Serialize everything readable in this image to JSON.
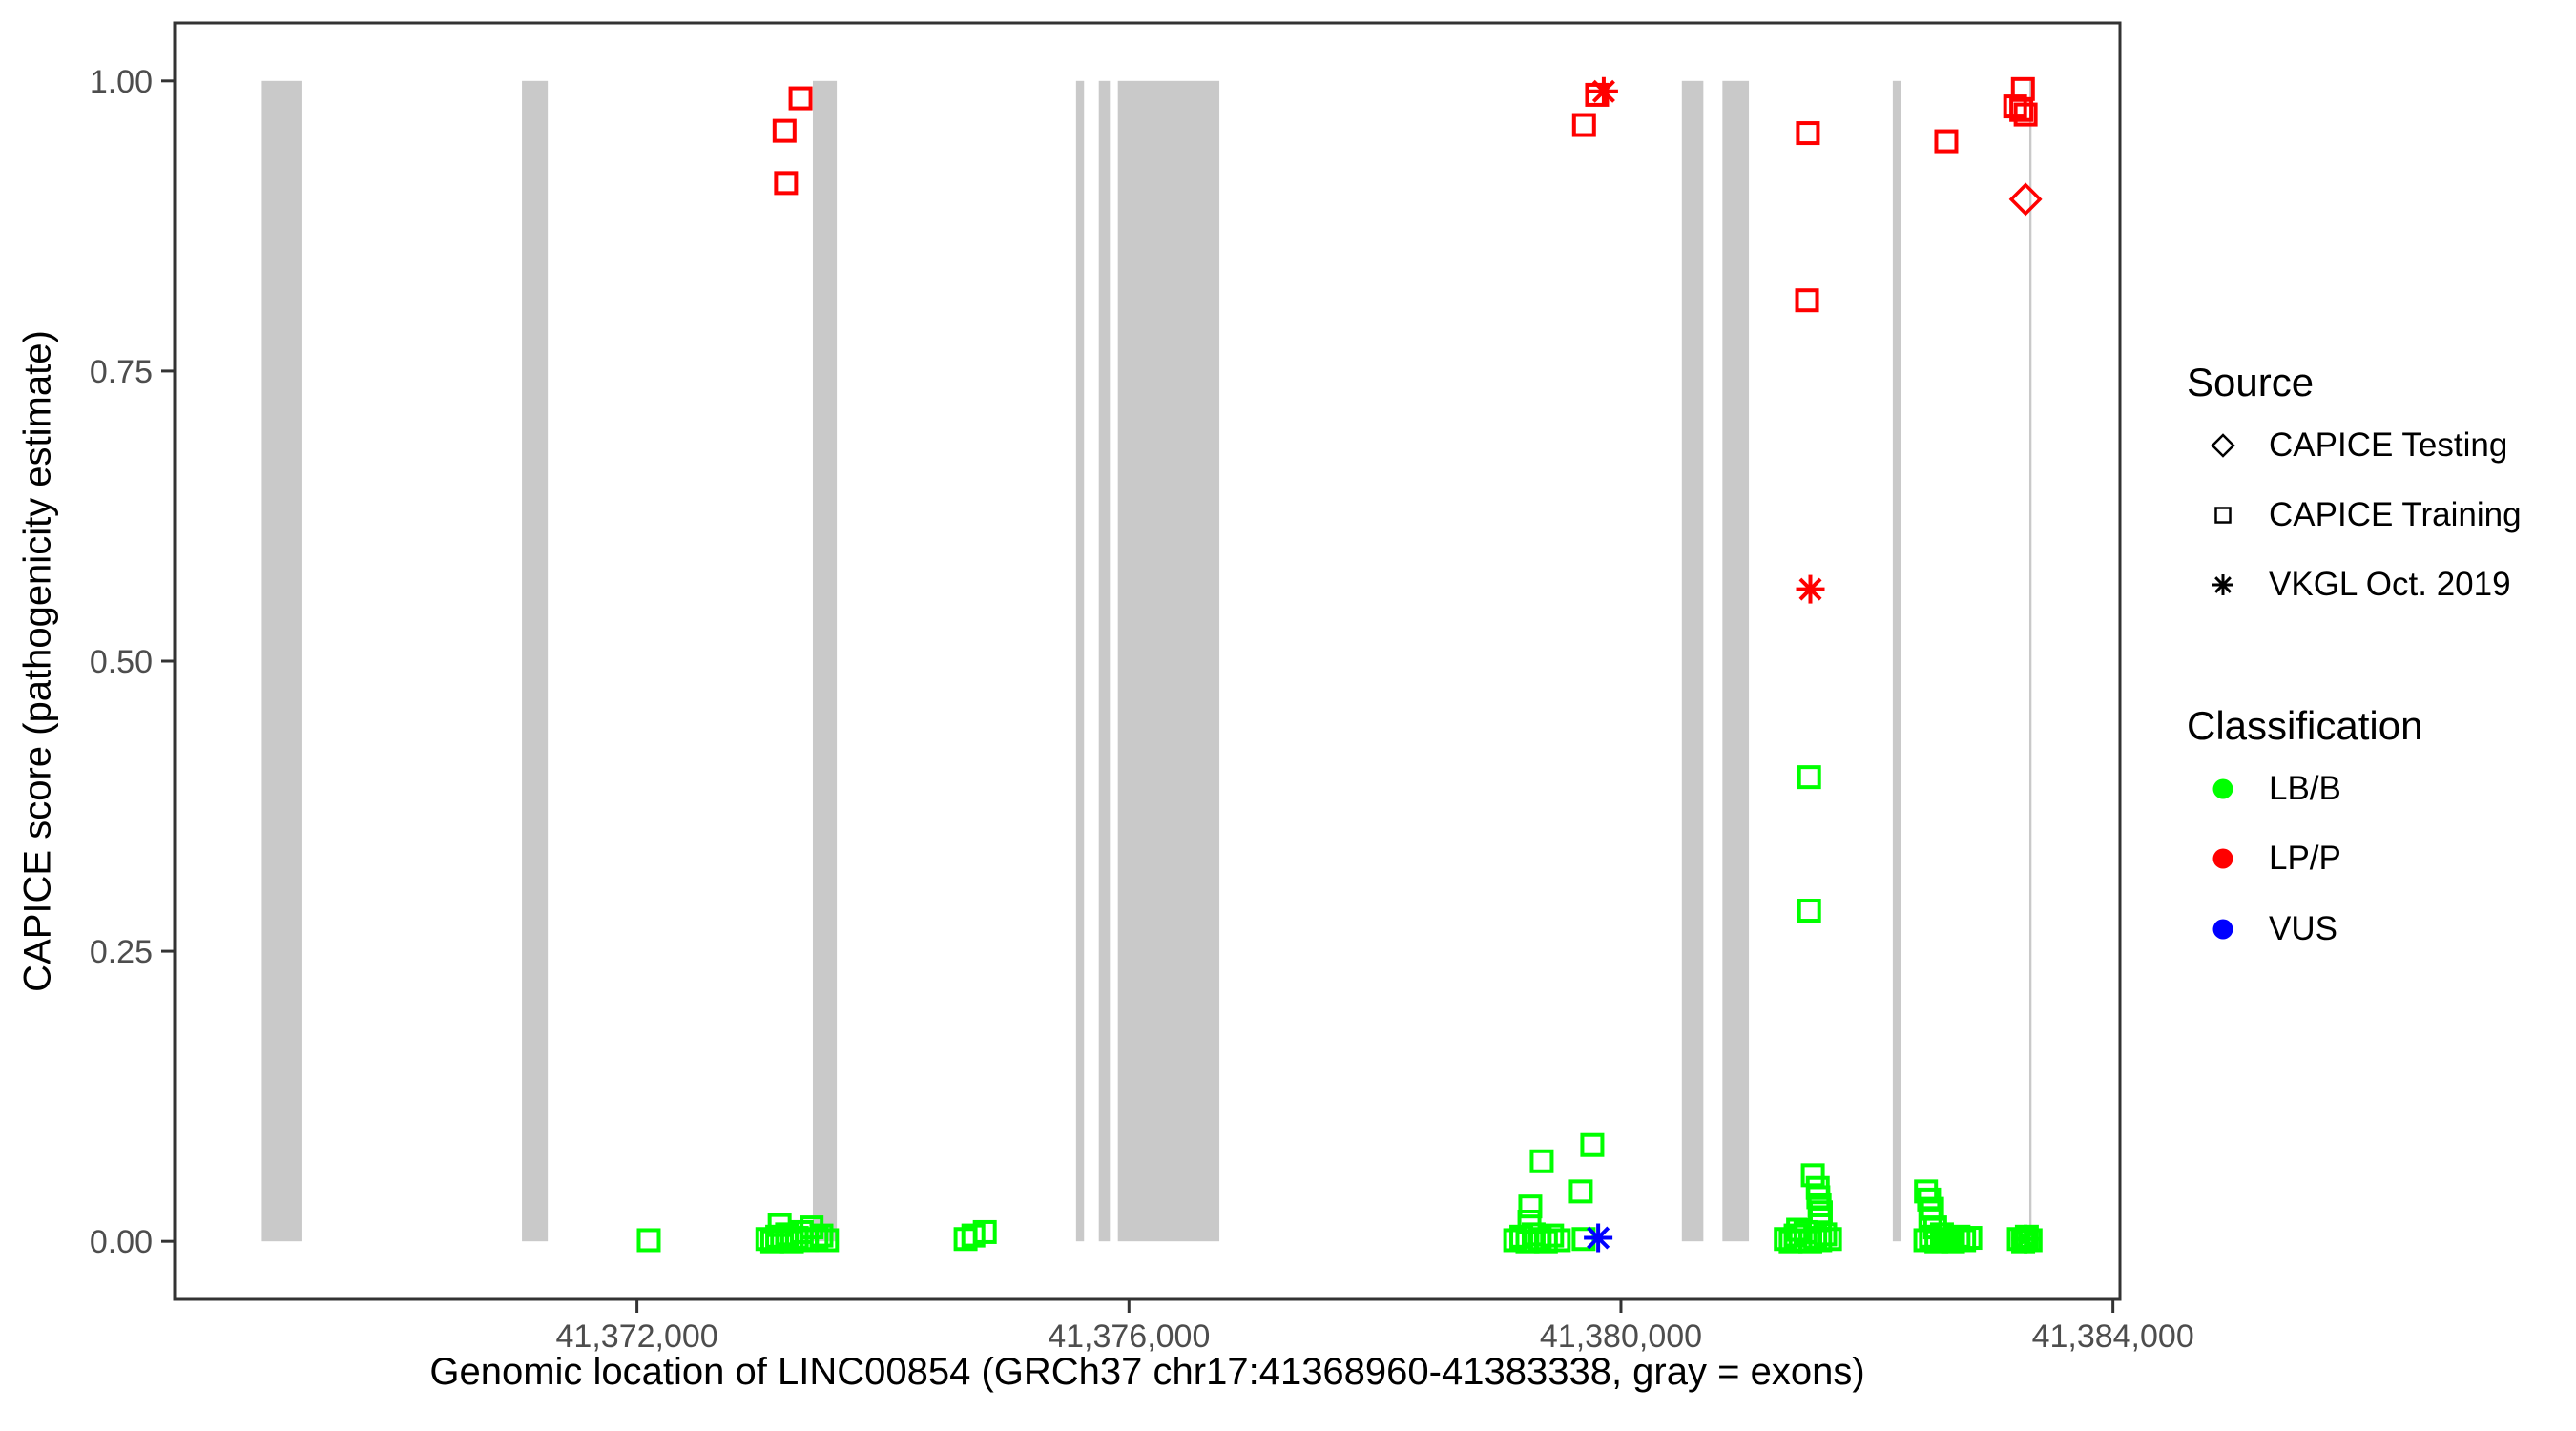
{
  "colors": {
    "classification": {
      "LB/B": "#00FF00",
      "LP/P": "#FF0000",
      "VUS": "#0000FF"
    },
    "exon_fill": "#C9C9C9",
    "panel_border": "#333333",
    "tick_label": "#4D4D4D"
  },
  "legend": {
    "source": {
      "title": "Source",
      "items": [
        {
          "label": "CAPICE Testing",
          "marker": "diamond"
        },
        {
          "label": "CAPICE Training",
          "marker": "square"
        },
        {
          "label": "VKGL Oct. 2019",
          "marker": "asterisk"
        }
      ]
    },
    "classification": {
      "title": "Classification",
      "items": [
        {
          "label": "LB/B",
          "color": "#00FF00"
        },
        {
          "label": "LP/P",
          "color": "#FF0000"
        },
        {
          "label": "VUS",
          "color": "#0000FF"
        }
      ]
    }
  },
  "chart_data": {
    "type": "scatter",
    "title": "",
    "xlabel": "Genomic location of LINC00854 (GRCh37 chr17:41368960-41383338, gray = exons)",
    "ylabel": "CAPICE score (pathogenicity estimate)",
    "xlim": [
      41368241,
      41384057
    ],
    "ylim": [
      -0.05,
      1.05
    ],
    "grid": false,
    "legend_position": "right",
    "x_ticks": [
      {
        "value": 41372000,
        "label": "41,372,000"
      },
      {
        "value": 41376000,
        "label": "41,376,000"
      },
      {
        "value": 41380000,
        "label": "41,380,000"
      },
      {
        "value": 41384000,
        "label": "41,384,000"
      }
    ],
    "y_ticks": [
      {
        "value": 0.0,
        "label": "0.00"
      },
      {
        "value": 0.25,
        "label": "0.25"
      },
      {
        "value": 0.5,
        "label": "0.50"
      },
      {
        "value": 0.75,
        "label": "0.75"
      },
      {
        "value": 1.0,
        "label": "1.00"
      }
    ],
    "exons_note": "gray bars span y=0 to y=1",
    "exons": [
      [
        41368950,
        41369280
      ],
      [
        41371065,
        41371275
      ],
      [
        41373430,
        41373625
      ],
      [
        41375570,
        41375635
      ],
      [
        41375755,
        41375845
      ],
      [
        41375910,
        41376735
      ],
      [
        41380495,
        41380670
      ],
      [
        41380825,
        41381040
      ],
      [
        41382210,
        41382280
      ],
      [
        41383320,
        41383338
      ]
    ],
    "points_format": [
      "genomic_position",
      "capice_score",
      "classification",
      "source_marker"
    ],
    "points": [
      [
        41372096,
        0.001,
        "LB/B",
        "square"
      ],
      [
        41373060,
        0.002,
        "LB/B",
        "square"
      ],
      [
        41373100,
        0.0,
        "LB/B",
        "square"
      ],
      [
        41373140,
        0.004,
        "LB/B",
        "square"
      ],
      [
        41373160,
        0.014,
        "LB/B",
        "square"
      ],
      [
        41373180,
        0.001,
        "LB/B",
        "square"
      ],
      [
        41373220,
        0.006,
        "LB/B",
        "square"
      ],
      [
        41373260,
        0.0,
        "LB/B",
        "square"
      ],
      [
        41373300,
        0.003,
        "LB/B",
        "square"
      ],
      [
        41373340,
        0.008,
        "LB/B",
        "square"
      ],
      [
        41373380,
        0.001,
        "LB/B",
        "square"
      ],
      [
        41373420,
        0.012,
        "LB/B",
        "square"
      ],
      [
        41373460,
        0.002,
        "LB/B",
        "square"
      ],
      [
        41373500,
        0.005,
        "LB/B",
        "square"
      ],
      [
        41373545,
        0.001,
        "LB/B",
        "square"
      ],
      [
        41374672,
        0.002,
        "LB/B",
        "square"
      ],
      [
        41374735,
        0.005,
        "LB/B",
        "square"
      ],
      [
        41374828,
        0.008,
        "LB/B",
        "square"
      ],
      [
        41379140,
        0.001,
        "LB/B",
        "square"
      ],
      [
        41379190,
        0.004,
        "LB/B",
        "square"
      ],
      [
        41379240,
        0.0,
        "LB/B",
        "square"
      ],
      [
        41379290,
        0.006,
        "LB/B",
        "square"
      ],
      [
        41379340,
        0.002,
        "LB/B",
        "square"
      ],
      [
        41379390,
        0.0,
        "LB/B",
        "square"
      ],
      [
        41379440,
        0.005,
        "LB/B",
        "square"
      ],
      [
        41379495,
        0.001,
        "LB/B",
        "square"
      ],
      [
        41379256,
        0.017,
        "LB/B",
        "square"
      ],
      [
        41379263,
        0.03,
        "LB/B",
        "square"
      ],
      [
        41379356,
        0.069,
        "LB/B",
        "square"
      ],
      [
        41379674,
        0.043,
        "LB/B",
        "square"
      ],
      [
        41379697,
        0.002,
        "LB/B",
        "square"
      ],
      [
        41379767,
        0.083,
        "LB/B",
        "square"
      ],
      [
        41381340,
        0.002,
        "LB/B",
        "square"
      ],
      [
        41381380,
        0.0,
        "LB/B",
        "square"
      ],
      [
        41381420,
        0.005,
        "LB/B",
        "square"
      ],
      [
        41381440,
        0.01,
        "LB/B",
        "square"
      ],
      [
        41381460,
        0.001,
        "LB/B",
        "square"
      ],
      [
        41381500,
        0.008,
        "LB/B",
        "square"
      ],
      [
        41381540,
        0.0,
        "LB/B",
        "square"
      ],
      [
        41381580,
        0.003,
        "LB/B",
        "square"
      ],
      [
        41381620,
        0.001,
        "LB/B",
        "square"
      ],
      [
        41381660,
        0.006,
        "LB/B",
        "square"
      ],
      [
        41381700,
        0.002,
        "LB/B",
        "square"
      ],
      [
        41381560,
        0.057,
        "LB/B",
        "square"
      ],
      [
        41381600,
        0.046,
        "LB/B",
        "square"
      ],
      [
        41381605,
        0.038,
        "LB/B",
        "square"
      ],
      [
        41381615,
        0.031,
        "LB/B",
        "square"
      ],
      [
        41381618,
        0.0195,
        "LB/B",
        "square"
      ],
      [
        41381625,
        0.025,
        "LB/B",
        "square"
      ],
      [
        41381530,
        0.4,
        "LB/B",
        "square"
      ],
      [
        41381530,
        0.285,
        "LB/B",
        "square"
      ],
      [
        41382475,
        0.001,
        "LB/B",
        "square"
      ],
      [
        41382520,
        0.004,
        "LB/B",
        "square"
      ],
      [
        41382565,
        0.0,
        "LB/B",
        "square"
      ],
      [
        41382610,
        0.006,
        "LB/B",
        "square"
      ],
      [
        41382655,
        0.002,
        "LB/B",
        "square"
      ],
      [
        41382700,
        0.0,
        "LB/B",
        "square"
      ],
      [
        41382745,
        0.004,
        "LB/B",
        "square"
      ],
      [
        41382790,
        0.001,
        "LB/B",
        "square"
      ],
      [
        41382840,
        0.003,
        "LB/B",
        "square"
      ],
      [
        41382480,
        0.043,
        "LB/B",
        "square"
      ],
      [
        41382505,
        0.036,
        "LB/B",
        "square"
      ],
      [
        41382515,
        0.02,
        "LB/B",
        "square"
      ],
      [
        41382530,
        0.028,
        "LB/B",
        "square"
      ],
      [
        41382555,
        0.012,
        "LB/B",
        "square"
      ],
      [
        41383235,
        0.002,
        "LB/B",
        "square"
      ],
      [
        41383270,
        0.0,
        "LB/B",
        "square"
      ],
      [
        41383300,
        0.004,
        "LB/B",
        "square"
      ],
      [
        41383330,
        0.001,
        "LB/B",
        "square"
      ],
      [
        41383290,
        0.002,
        "LB/B",
        "asterisk"
      ],
      [
        41373200,
        0.957,
        "LP/P",
        "square"
      ],
      [
        41373212,
        0.912,
        "LP/P",
        "square"
      ],
      [
        41373330,
        0.985,
        "LP/P",
        "square"
      ],
      [
        41379700,
        0.962,
        "LP/P",
        "square"
      ],
      [
        41379806,
        0.988,
        "LP/P",
        "square"
      ],
      [
        41381513,
        0.811,
        "LP/P",
        "square"
      ],
      [
        41381520,
        0.955,
        "LP/P",
        "square"
      ],
      [
        41382645,
        0.948,
        "LP/P",
        "square"
      ],
      [
        41383205,
        0.978,
        "LP/P",
        "square"
      ],
      [
        41383255,
        0.975,
        "LP/P",
        "square"
      ],
      [
        41383268,
        0.993,
        "LP/P",
        "square"
      ],
      [
        41383290,
        0.971,
        "LP/P",
        "square"
      ],
      [
        41379860,
        0.991,
        "LP/P",
        "asterisk"
      ],
      [
        41381540,
        0.562,
        "LP/P",
        "asterisk"
      ],
      [
        41383290,
        0.898,
        "LP/P",
        "diamond"
      ],
      [
        41379815,
        0.003,
        "VUS",
        "asterisk"
      ]
    ]
  }
}
